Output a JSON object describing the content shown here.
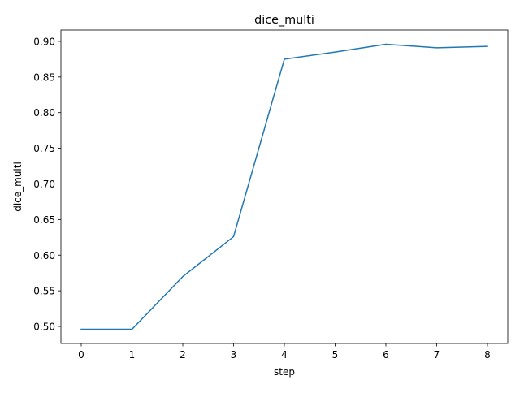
{
  "chart_data": {
    "type": "line",
    "title": "dice_multi",
    "xlabel": "step",
    "ylabel": "dice_multi",
    "x": [
      0,
      1,
      2,
      3,
      4,
      5,
      6,
      7,
      8
    ],
    "series": [
      {
        "values": [
          0.496,
          0.496,
          0.57,
          0.626,
          0.875,
          0.885,
          0.896,
          0.891,
          0.893
        ],
        "color": "#1f77b4"
      }
    ],
    "xticks": [
      "0",
      "1",
      "2",
      "3",
      "4",
      "5",
      "6",
      "7",
      "8"
    ],
    "yticks": [
      "0.50",
      "0.55",
      "0.60",
      "0.65",
      "0.70",
      "0.75",
      "0.80",
      "0.85",
      "0.90"
    ],
    "xlim": [
      -0.4,
      8.4
    ],
    "ylim": [
      0.4761,
      0.9159
    ],
    "grid": false,
    "legend": "none"
  }
}
